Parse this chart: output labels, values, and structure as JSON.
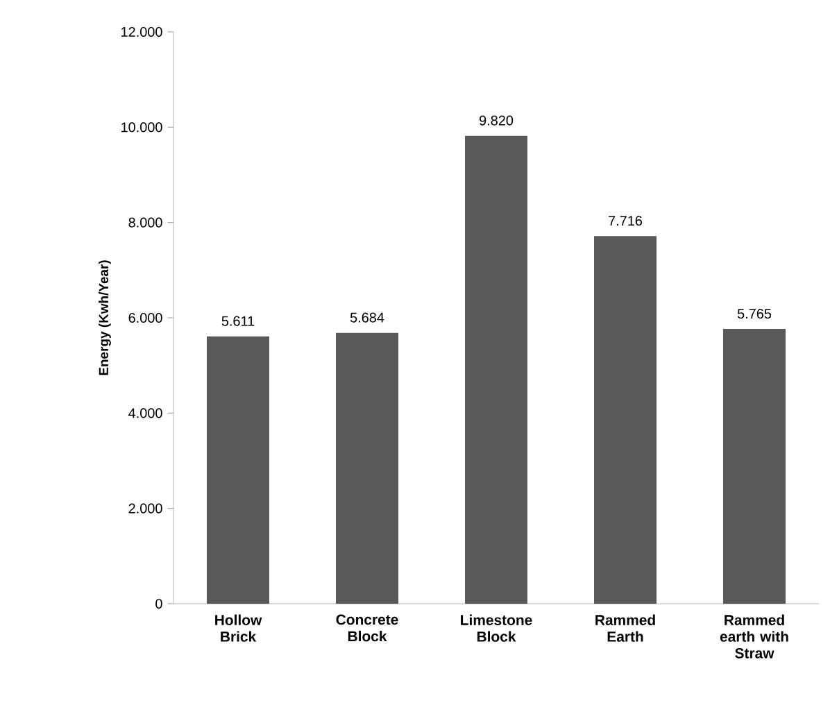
{
  "chart_data": {
    "type": "bar",
    "ylabel": "Energy (Kwh/Year)",
    "categories": [
      "Hollow Brick",
      "Concrete Block",
      "Limestone Block",
      "Rammed Earth",
      "Rammed earth with Straw"
    ],
    "values": [
      5611,
      5684,
      9820,
      7716,
      5765
    ],
    "value_labels": [
      "5.611",
      "5.684",
      "9.820",
      "7.716",
      "5.765"
    ],
    "color": "#595959",
    "ylim": [
      0,
      12000
    ],
    "yticks": [
      0,
      {
        "value": 2000,
        "label": "2.000"
      },
      {
        "value": 4000,
        "label": "4.000"
      },
      {
        "value": 6000,
        "label": "6.000"
      },
      {
        "value": 8000,
        "label": "8.000"
      },
      {
        "value": 10000,
        "label": "10.000"
      },
      {
        "value": 12000,
        "label": "12.000"
      }
    ],
    "grid": false
  }
}
